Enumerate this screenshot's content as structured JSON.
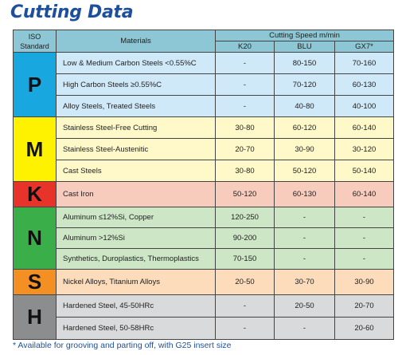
{
  "title": "Cutting Data",
  "header": {
    "iso_line1": "ISO",
    "iso_line2": "Standard",
    "materials": "Materials",
    "cutting_speed": "Cutting Speed m/min",
    "grades": [
      "K20",
      "BLU",
      "GX7*"
    ]
  },
  "groups": [
    {
      "letter": "P",
      "rows": [
        {
          "material": "Low & Medium Carbon Steels <0.55%C",
          "k20": "-",
          "blu": "80-150",
          "gx7": "70-160"
        },
        {
          "material": "High Carbon Steels ≥0.55%C",
          "k20": "-",
          "blu": "70-120",
          "gx7": "60-130"
        },
        {
          "material": "Alloy Steels, Treated Steels",
          "k20": "-",
          "blu": "40-80",
          "gx7": "40-100"
        }
      ]
    },
    {
      "letter": "M",
      "rows": [
        {
          "material": "Stainless Steel-Free Cutting",
          "k20": "30-80",
          "blu": "60-120",
          "gx7": "60-140"
        },
        {
          "material": "Stainless Steel-Austenitic",
          "k20": "20-70",
          "blu": "30-90",
          "gx7": "30-120"
        },
        {
          "material": "Cast Steels",
          "k20": "30-80",
          "blu": "50-120",
          "gx7": "50-140"
        }
      ]
    },
    {
      "letter": "K",
      "rows": [
        {
          "material": "Cast Iron",
          "k20": "50-120",
          "blu": "60-130",
          "gx7": "60-140"
        }
      ]
    },
    {
      "letter": "N",
      "rows": [
        {
          "material": "Aluminum ≤12%Si, Copper",
          "k20": "120-250",
          "blu": "-",
          "gx7": "-"
        },
        {
          "material": "Aluminum >12%Si",
          "k20": "90-200",
          "blu": "-",
          "gx7": "-"
        },
        {
          "material": "Synthetics, Duroplastics, Thermoplastics",
          "k20": "70-150",
          "blu": "-",
          "gx7": "-"
        }
      ]
    },
    {
      "letter": "S",
      "rows": [
        {
          "material": "Nickel Alloys, Titanium Alloys",
          "k20": "20-50",
          "blu": "30-70",
          "gx7": "30-90"
        }
      ]
    },
    {
      "letter": "H",
      "rows": [
        {
          "material": "Hardened Steel, 45-50HRc",
          "k20": "-",
          "blu": "20-50",
          "gx7": "20-70"
        },
        {
          "material": "Hardened Steel, 50-58HRc",
          "k20": "-",
          "blu": "-",
          "gx7": "20-60"
        }
      ]
    }
  ],
  "footnote": "* Available for grooving and parting off, with G25 insert size"
}
